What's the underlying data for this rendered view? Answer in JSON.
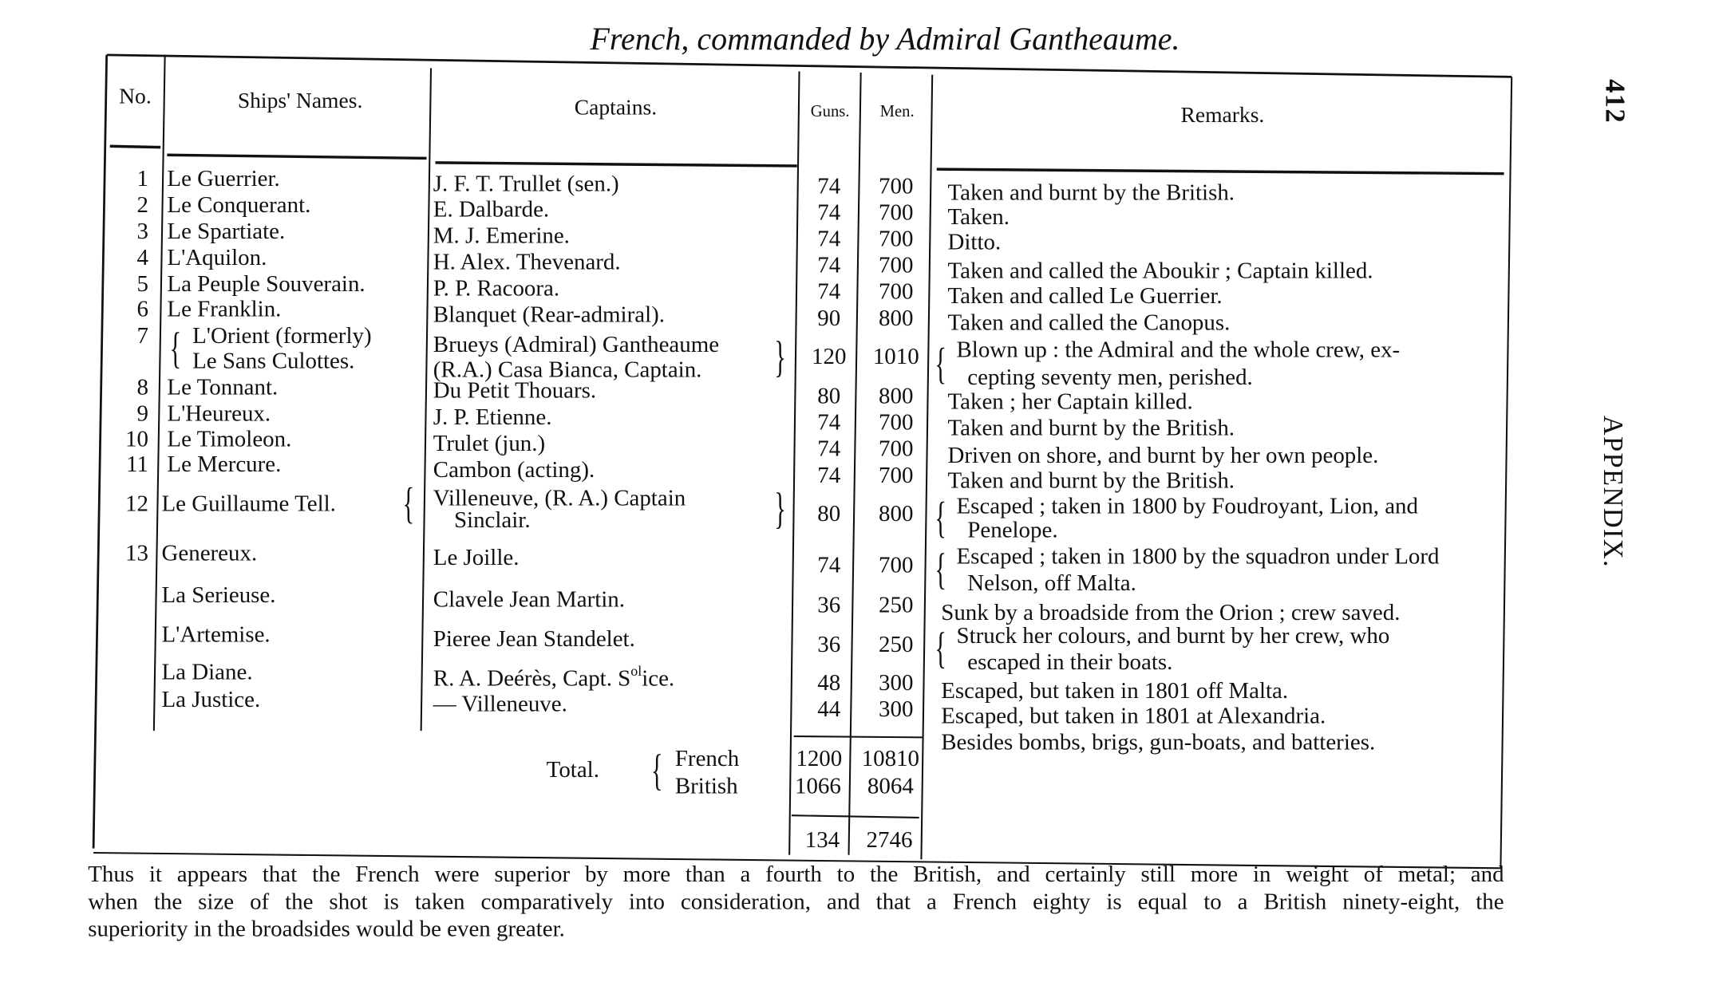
{
  "page": {
    "title": "French, commanded by Admiral Gantheaume.",
    "page_number": "412",
    "running_head": "APPENDIX."
  },
  "table": {
    "headers": {
      "no": "No.",
      "ships": "Ships' Names.",
      "captains": "Captains.",
      "guns": "Guns.",
      "men": "Men.",
      "remarks": "Remarks."
    },
    "rows": [
      {
        "no": "1",
        "ship": [
          "Le Guerrier."
        ],
        "captain": [
          "J. F. T. Trullet (sen.)"
        ],
        "guns": "74",
        "men": "700",
        "remarks": [
          "Taken and burnt by the British."
        ]
      },
      {
        "no": "2",
        "ship": [
          "Le Conquerant."
        ],
        "captain": [
          "E. Dalbarde."
        ],
        "guns": "74",
        "men": "700",
        "remarks": [
          "Taken."
        ]
      },
      {
        "no": "3",
        "ship": [
          "Le Spartiate."
        ],
        "captain": [
          "M. J. Emerine."
        ],
        "guns": "74",
        "men": "700",
        "remarks": [
          "Ditto."
        ]
      },
      {
        "no": "4",
        "ship": [
          "L'Aquilon."
        ],
        "captain": [
          "H. Alex. Thevenard."
        ],
        "guns": "74",
        "men": "700",
        "remarks": [
          "Taken and called the  Aboukir ; Captain killed."
        ]
      },
      {
        "no": "5",
        "ship": [
          "La Peuple Souverain."
        ],
        "captain": [
          "P. P. Racoora."
        ],
        "guns": "74",
        "men": "700",
        "remarks": [
          "Taken and called Le Guerrier."
        ]
      },
      {
        "no": "6",
        "ship": [
          "Le Franklin."
        ],
        "captain": [
          "Blanquet (Rear-admiral)."
        ],
        "guns": "90",
        "men": "800",
        "remarks": [
          "Taken and called the Canopus."
        ]
      },
      {
        "no": "7",
        "ship": [
          "L'Orient (formerly)",
          "Le Sans Culottes."
        ],
        "captain": [
          "Brueys (Admiral) Gantheaume",
          "(R.A.) Casa Bianca, Captain."
        ],
        "guns": "120",
        "men": "1010",
        "remarks": [
          "Blown  up :  the Admiral and  the whole  crew,  ex-",
          "cepting seventy men, perished."
        ]
      },
      {
        "no": "8",
        "ship": [
          "Le Tonnant."
        ],
        "captain": [
          "Du Petit Thouars."
        ],
        "guns": "80",
        "men": "800",
        "remarks": [
          "Taken ;  her Captain killed."
        ]
      },
      {
        "no": "9",
        "ship": [
          "L'Heureux."
        ],
        "captain": [
          "J. P. Etienne."
        ],
        "guns": "74",
        "men": "700",
        "remarks": [
          "Taken and burnt by the British."
        ]
      },
      {
        "no": "10",
        "ship": [
          "Le Timoleon."
        ],
        "captain": [
          "Trulet (jun.)"
        ],
        "guns": "74",
        "men": "700",
        "remarks": [
          "Driven on shore, and burnt by her own people."
        ]
      },
      {
        "no": "11",
        "ship": [
          "Le Mercure."
        ],
        "captain": [
          "Cambon (acting)."
        ],
        "guns": "74",
        "men": "700",
        "remarks": [
          "Taken and burnt  by the British."
        ]
      },
      {
        "no": "12",
        "ship": [
          "Le Guillaume Tell."
        ],
        "captain": [
          "Villeneuve, (R. A.) Captain",
          "Sinclair."
        ],
        "guns": "80",
        "men": "800",
        "remarks": [
          "Escaped ; taken in 1800 by Foudroyant, Lion, and",
          "Penelope."
        ]
      },
      {
        "no": "13",
        "ship": [
          "Genereux."
        ],
        "captain": [
          "Le Joille."
        ],
        "guns": "74",
        "men": "700",
        "remarks": [
          "Escaped ; taken in 1800 by the squadron under Lord",
          "Nelson, off Malta."
        ]
      },
      {
        "no": "",
        "ship": [
          "La Serieuse."
        ],
        "captain": [
          "Clavele Jean Martin."
        ],
        "guns": "36",
        "men": "250",
        "remarks": [
          "Sunk by a  broadside from the Orion ; crew saved."
        ]
      },
      {
        "no": "",
        "ship": [
          "L'Artemise."
        ],
        "captain": [
          "Pieree Jean Standelet."
        ],
        "guns": "36",
        "men": "250",
        "remarks": [
          "Struck  her  colours,  and  burnt  by her crew,  who",
          "escaped in their boats."
        ]
      },
      {
        "no": "",
        "ship": [
          "La Diane."
        ],
        "captain": [
          "R. A. Deérès, Capt. S"
        ],
        "captain_sup": "ol",
        "captain_after": "ice.",
        "guns": "48",
        "men": "300",
        "remarks": [
          "Escaped, but taken in 1801 off Malta."
        ]
      },
      {
        "no": "",
        "ship": [
          "La Justice."
        ],
        "captain": [
          "— Villeneuve."
        ],
        "guns": "44",
        "men": "300",
        "remarks": [
          "Escaped, but taken in 1801 at Alexandria."
        ]
      }
    ],
    "extra_remark": "Besides bombs, brigs, gun-boats, and batteries.",
    "totals": {
      "label": "Total.",
      "french_label": "French",
      "british_label": "British",
      "french_guns": "1200",
      "french_men": "10810",
      "british_guns": "1066",
      "british_men": "8064",
      "diff_guns": "134",
      "diff_men": "2746"
    }
  },
  "footer": {
    "lines": [
      "Thus it appears that the French were superior by more than a fourth to the British, and certainly still more in weight of metal;  and",
      "when the size of the shot is taken comparatively into consideration, and that a French eighty is equal to a British ninety-eight, the",
      "superiority in the  broadsides would  be even greater."
    ]
  }
}
